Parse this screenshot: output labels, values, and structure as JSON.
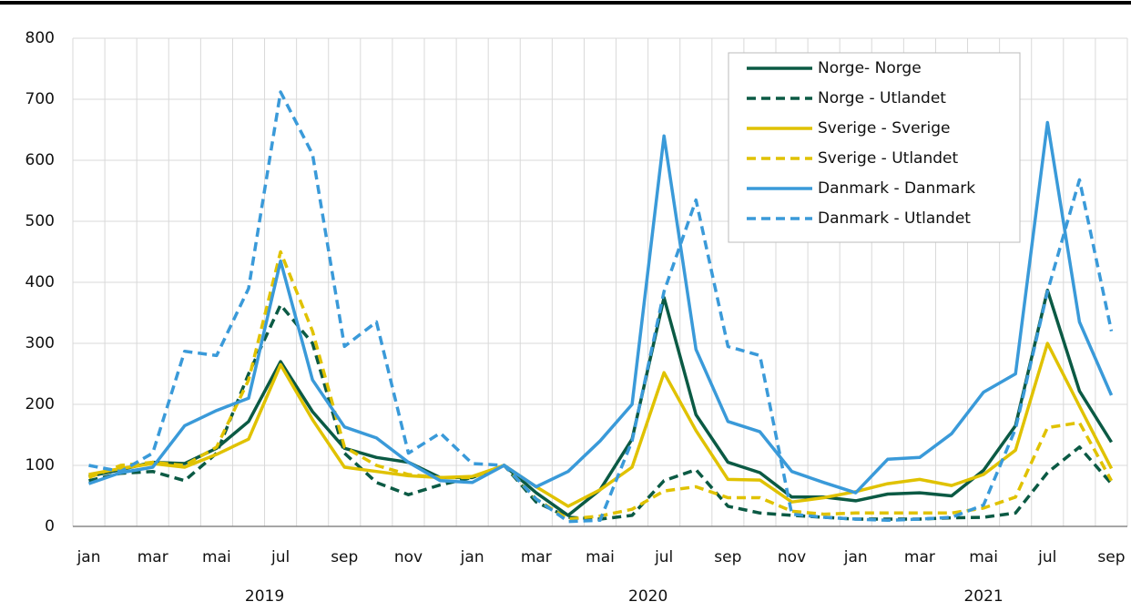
{
  "chart_data": {
    "type": "line",
    "categories": [
      "jan",
      null,
      "mar",
      null,
      "mai",
      null,
      "jul",
      null,
      "sep",
      null,
      "nov",
      null,
      "jan",
      null,
      "mar",
      null,
      "mai",
      null,
      "jul",
      null,
      "sep",
      null,
      "nov",
      null,
      "jan",
      null,
      "mar",
      null,
      "mai",
      null,
      "jul",
      null,
      "sep"
    ],
    "year_labels": [
      "2019",
      "2020",
      "2021"
    ],
    "ylim": [
      0,
      800
    ],
    "yticks": [
      0,
      100,
      200,
      300,
      400,
      500,
      600,
      700,
      800
    ],
    "grid": true,
    "legend": "top-right",
    "series": [
      {
        "name": "Norge- Norge",
        "color": "#0b5a44",
        "dashed": false,
        "values": [
          82,
          93,
          105,
          103,
          128,
          172,
          270,
          188,
          128,
          113,
          105,
          80,
          80,
          100,
          55,
          18,
          60,
          143,
          375,
          183,
          105,
          88,
          48,
          48,
          42,
          53,
          55,
          50,
          92,
          165,
          387,
          222,
          138
        ]
      },
      {
        "name": "Norge - Utlandet",
        "color": "#0b5a44",
        "dashed": true,
        "values": [
          75,
          87,
          90,
          75,
          120,
          250,
          363,
          300,
          120,
          72,
          52,
          68,
          80,
          100,
          40,
          15,
          12,
          18,
          75,
          93,
          33,
          22,
          18,
          15,
          12,
          12,
          12,
          14,
          15,
          22,
          88,
          130,
          70
        ]
      },
      {
        "name": "Sverige - Sverige",
        "color": "#e0c200",
        "dashed": false,
        "values": [
          85,
          95,
          103,
          97,
          118,
          143,
          265,
          175,
          97,
          90,
          83,
          80,
          82,
          100,
          65,
          33,
          60,
          97,
          252,
          157,
          77,
          76,
          40,
          47,
          57,
          70,
          77,
          67,
          85,
          125,
          300,
          197,
          95
        ]
      },
      {
        "name": "Sverige - Utlandet",
        "color": "#e0c200",
        "dashed": true,
        "values": [
          80,
          100,
          105,
          100,
          130,
          240,
          450,
          320,
          130,
          100,
          85,
          80,
          80,
          100,
          45,
          12,
          17,
          28,
          58,
          65,
          47,
          47,
          25,
          20,
          22,
          22,
          22,
          22,
          30,
          48,
          162,
          170,
          75
        ]
      },
      {
        "name": "Danmark - Danmark",
        "color": "#3a9ad9",
        "dashed": false,
        "values": [
          70,
          88,
          97,
          165,
          190,
          210,
          435,
          240,
          163,
          145,
          105,
          75,
          72,
          100,
          65,
          90,
          140,
          200,
          640,
          290,
          172,
          155,
          90,
          72,
          55,
          110,
          113,
          152,
          220,
          250,
          662,
          335,
          215
        ]
      },
      {
        "name": "Danmark - Utlandet",
        "color": "#3a9ad9",
        "dashed": true,
        "values": [
          100,
          90,
          120,
          287,
          280,
          390,
          712,
          610,
          295,
          335,
          120,
          153,
          103,
          100,
          45,
          8,
          10,
          140,
          385,
          535,
          295,
          280,
          20,
          15,
          12,
          10,
          12,
          15,
          35,
          160,
          385,
          568,
          320
        ]
      }
    ]
  }
}
